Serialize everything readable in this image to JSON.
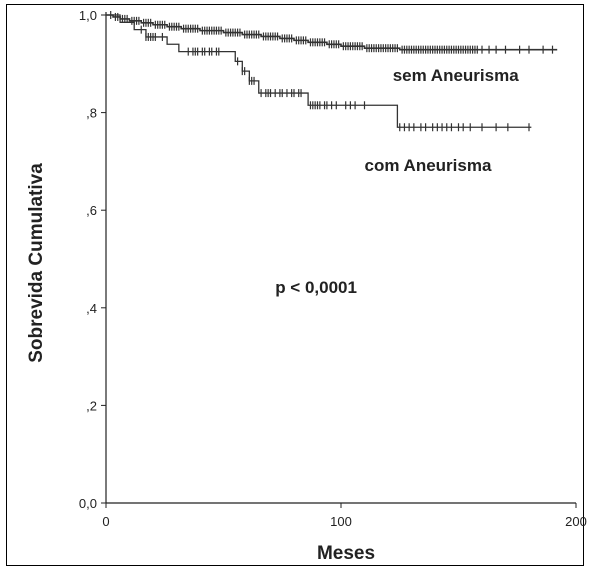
{
  "chart_data": {
    "type": "line",
    "subtype": "kaplan-meier",
    "xlabel": "Meses",
    "ylabel": "Sobrevida Cumulativa",
    "xlim": [
      0,
      200
    ],
    "ylim": [
      0,
      1
    ],
    "xticks": [
      0,
      100,
      200
    ],
    "xtick_labels": [
      "0",
      "100",
      "200"
    ],
    "yticks": [
      0,
      0.2,
      0.4,
      0.6,
      0.8,
      1.0
    ],
    "ytick_labels": [
      "0,0",
      ",2",
      ",4",
      ",6",
      ",8",
      "1,0"
    ],
    "grid": false,
    "line_color": "#333333",
    "annotations": [
      {
        "text": "p < 0,0001",
        "x": 72,
        "y": 0.43
      },
      {
        "text": "sem Aneurisma",
        "x": 122,
        "y": 0.865
      },
      {
        "text": "com Aneurisma",
        "x": 110,
        "y": 0.68
      }
    ],
    "series": [
      {
        "name": "sem Aneurisma",
        "steps": [
          [
            0,
            1.0
          ],
          [
            3,
            0.996
          ],
          [
            6,
            0.992
          ],
          [
            10,
            0.988
          ],
          [
            15,
            0.984
          ],
          [
            20,
            0.98
          ],
          [
            26,
            0.976
          ],
          [
            32,
            0.972
          ],
          [
            40,
            0.968
          ],
          [
            50,
            0.964
          ],
          [
            58,
            0.96
          ],
          [
            66,
            0.956
          ],
          [
            74,
            0.952
          ],
          [
            80,
            0.948
          ],
          [
            86,
            0.944
          ],
          [
            94,
            0.94
          ],
          [
            100,
            0.936
          ],
          [
            110,
            0.932
          ],
          [
            125,
            0.929
          ],
          [
            192,
            0.929
          ]
        ],
        "censor": [
          2,
          4,
          5,
          7,
          8,
          9,
          11,
          12,
          13,
          14,
          16,
          17,
          18,
          19,
          21,
          22,
          23,
          24,
          25,
          27,
          28,
          29,
          30,
          31,
          33,
          34,
          35,
          36,
          37,
          38,
          39,
          41,
          42,
          43,
          44,
          45,
          46,
          47,
          48,
          49,
          51,
          52,
          53,
          54,
          55,
          56,
          57,
          59,
          60,
          61,
          62,
          63,
          64,
          65,
          67,
          68,
          69,
          70,
          71,
          72,
          73,
          75,
          76,
          77,
          78,
          79,
          81,
          82,
          83,
          84,
          85,
          87,
          88,
          89,
          90,
          91,
          92,
          93,
          95,
          96,
          97,
          98,
          99,
          101,
          102,
          103,
          104,
          105,
          106,
          107,
          108,
          109,
          111,
          112,
          113,
          114,
          115,
          116,
          117,
          118,
          119,
          120,
          121,
          122,
          123,
          124,
          126,
          127,
          128,
          129,
          130,
          131,
          132,
          133,
          134,
          135,
          136,
          137,
          138,
          139,
          140,
          141,
          142,
          143,
          144,
          145,
          146,
          147,
          148,
          149,
          150,
          151,
          152,
          153,
          154,
          155,
          156,
          157,
          158,
          160,
          163,
          166,
          170,
          176,
          180,
          186,
          190
        ]
      },
      {
        "name": "com Aneurisma",
        "steps": [
          [
            0,
            1.0
          ],
          [
            6,
            0.985
          ],
          [
            12,
            0.97
          ],
          [
            17,
            0.955
          ],
          [
            26,
            0.94
          ],
          [
            31,
            0.925
          ],
          [
            55,
            0.905
          ],
          [
            58,
            0.885
          ],
          [
            61,
            0.865
          ],
          [
            65,
            0.84
          ],
          [
            86,
            0.815
          ],
          [
            124,
            0.77
          ],
          [
            181,
            0.77
          ]
        ],
        "censor": [
          15,
          17,
          18,
          19,
          20,
          21,
          24,
          35,
          37,
          38,
          39,
          41,
          42,
          44,
          45,
          47,
          48,
          56,
          58,
          59,
          61,
          62,
          63,
          66,
          68,
          69,
          70,
          72,
          74,
          75,
          77,
          79,
          80,
          82,
          83,
          87,
          88,
          89,
          90,
          91,
          93,
          94,
          96,
          98,
          102,
          104,
          106,
          110,
          125,
          127,
          129,
          131,
          134,
          136,
          139,
          141,
          143,
          145,
          147,
          150,
          152,
          155,
          160,
          166,
          171,
          180
        ]
      }
    ]
  }
}
